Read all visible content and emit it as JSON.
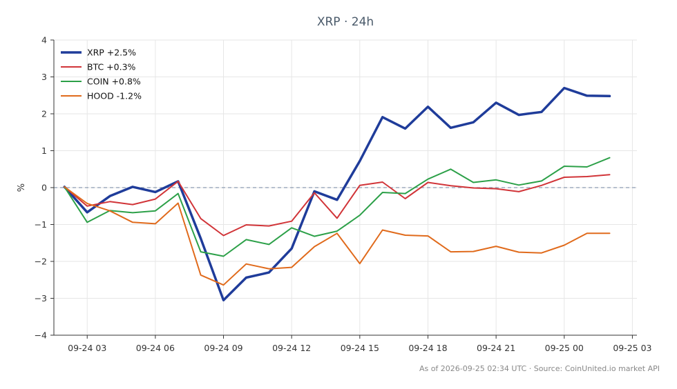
{
  "chart_data": {
    "type": "line",
    "title": "XRP · 24h",
    "xlabel": "",
    "ylabel": "%",
    "ylim": [
      -4,
      4
    ],
    "xlim": [
      "2026-09-24 01:32",
      "2026-09-25 03:12"
    ],
    "yticks": [
      -4,
      -3,
      -2,
      -1,
      0,
      1,
      2,
      3,
      4
    ],
    "ytick_labels": [
      "−4",
      "−3",
      "−2",
      "−1",
      "0",
      "1",
      "2",
      "3",
      "4"
    ],
    "xticks": [
      "2026-09-24 03:00",
      "2026-09-24 06:00",
      "2026-09-24 09:00",
      "2026-09-24 12:00",
      "2026-09-24 15:00",
      "2026-09-24 18:00",
      "2026-09-24 21:00",
      "2026-09-25 00:00",
      "2026-09-25 03:00"
    ],
    "xtick_labels": [
      "09-24 03",
      "09-24 06",
      "09-24 09",
      "09-24 12",
      "09-24 15",
      "09-24 18",
      "09-24 21",
      "09-25 00",
      "09-25 03"
    ],
    "x": [
      "2026-09-24 02:00",
      "2026-09-24 03:00",
      "2026-09-24 04:00",
      "2026-09-24 05:00",
      "2026-09-24 06:00",
      "2026-09-24 07:00",
      "2026-09-24 08:00",
      "2026-09-24 09:00",
      "2026-09-24 10:00",
      "2026-09-24 11:00",
      "2026-09-24 12:00",
      "2026-09-24 13:00",
      "2026-09-24 14:00",
      "2026-09-24 15:00",
      "2026-09-24 16:00",
      "2026-09-24 17:00",
      "2026-09-24 18:00",
      "2026-09-24 19:00",
      "2026-09-24 20:00",
      "2026-09-24 21:00",
      "2026-09-24 22:00",
      "2026-09-24 23:00",
      "2026-09-25 00:00",
      "2026-09-25 01:00",
      "2026-09-25 02:00"
    ],
    "series": [
      {
        "name": "XRP +2.5%",
        "color": "#1f3c9a",
        "width": 3.5,
        "values": [
          0.02,
          -0.67,
          -0.23,
          0.02,
          -0.12,
          0.17,
          -1.38,
          -3.05,
          -2.44,
          -2.3,
          -1.65,
          -0.1,
          -0.33,
          0.72,
          1.91,
          1.6,
          2.19,
          1.62,
          1.77,
          2.3,
          1.97,
          2.05,
          2.7,
          2.49,
          2.48
        ]
      },
      {
        "name": "BTC +0.3%",
        "color": "#d13438",
        "width": 2,
        "values": [
          0.02,
          -0.5,
          -0.38,
          -0.46,
          -0.31,
          0.17,
          -0.84,
          -1.3,
          -1.01,
          -1.04,
          -0.91,
          -0.14,
          -0.83,
          0.06,
          0.15,
          -0.3,
          0.14,
          0.05,
          -0.01,
          -0.03,
          -0.11,
          0.06,
          0.28,
          0.3,
          0.35
        ]
      },
      {
        "name": "COIN +0.8%",
        "color": "#2ca048",
        "width": 2,
        "values": [
          0.02,
          -0.94,
          -0.62,
          -0.68,
          -0.63,
          -0.16,
          -1.74,
          -1.86,
          -1.41,
          -1.54,
          -1.09,
          -1.32,
          -1.18,
          -0.75,
          -0.13,
          -0.16,
          0.23,
          0.5,
          0.14,
          0.21,
          0.07,
          0.18,
          0.58,
          0.56,
          0.81
        ]
      },
      {
        "name": "HOOD -1.2%",
        "color": "#e06a1b",
        "width": 2,
        "values": [
          0.02,
          -0.43,
          -0.63,
          -0.94,
          -0.98,
          -0.42,
          -2.37,
          -2.64,
          -2.07,
          -2.2,
          -2.16,
          -1.6,
          -1.24,
          -2.06,
          -1.15,
          -1.29,
          -1.31,
          -1.74,
          -1.73,
          -1.59,
          -1.75,
          -1.77,
          -1.56,
          -1.24,
          -1.24
        ]
      }
    ],
    "reference_line": {
      "y": 0,
      "style": "dashed",
      "color": "#8a9ab0"
    },
    "grid": true,
    "legend_position": "top-left",
    "footer": "As of 2026-09-25 02:34 UTC · Source: CoinUnited.io market API"
  }
}
